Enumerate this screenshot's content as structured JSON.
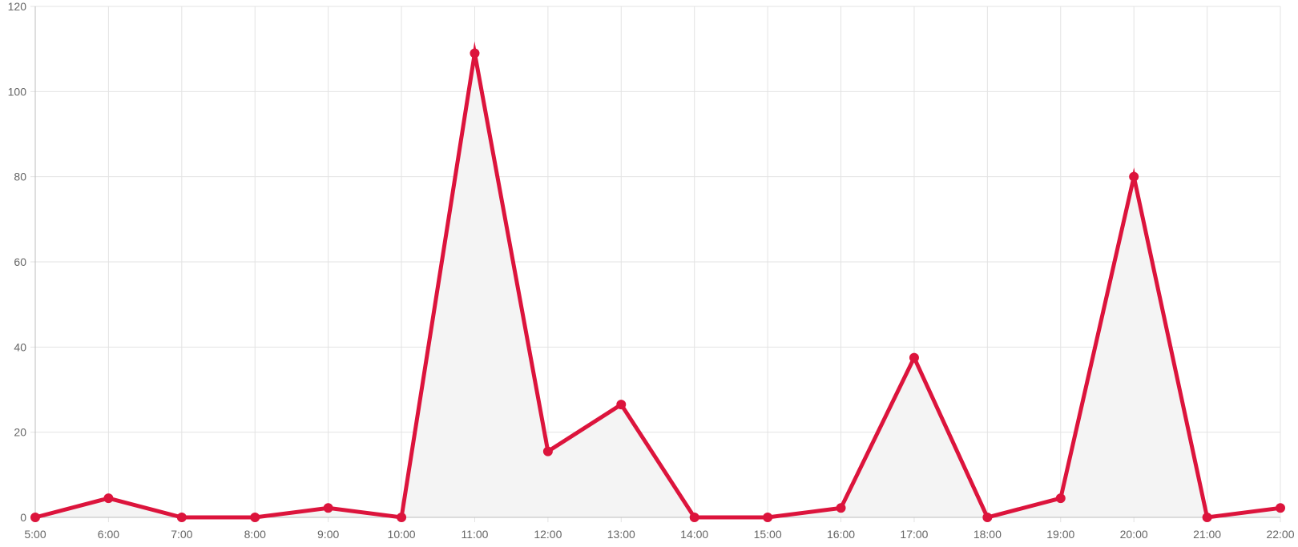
{
  "chart_data": {
    "type": "line",
    "x": [
      "5:00",
      "6:00",
      "7:00",
      "8:00",
      "9:00",
      "10:00",
      "11:00",
      "12:00",
      "13:00",
      "14:00",
      "15:00",
      "16:00",
      "17:00",
      "18:00",
      "19:00",
      "20:00",
      "21:00",
      "22:00"
    ],
    "series": [
      {
        "values": [
          0,
          4.5,
          0,
          0,
          2.2,
          0,
          109,
          15.5,
          26.5,
          0,
          0,
          2.2,
          37.5,
          0,
          4.5,
          80,
          0,
          2.2
        ],
        "color": "#dc143c",
        "fill": "#f4f4f4"
      }
    ],
    "ylim": [
      0,
      120
    ],
    "yticks": [
      0,
      20,
      40,
      60,
      80,
      100,
      120
    ],
    "grid": true,
    "legend": "none",
    "title": "",
    "xlabel": "",
    "ylabel": ""
  }
}
